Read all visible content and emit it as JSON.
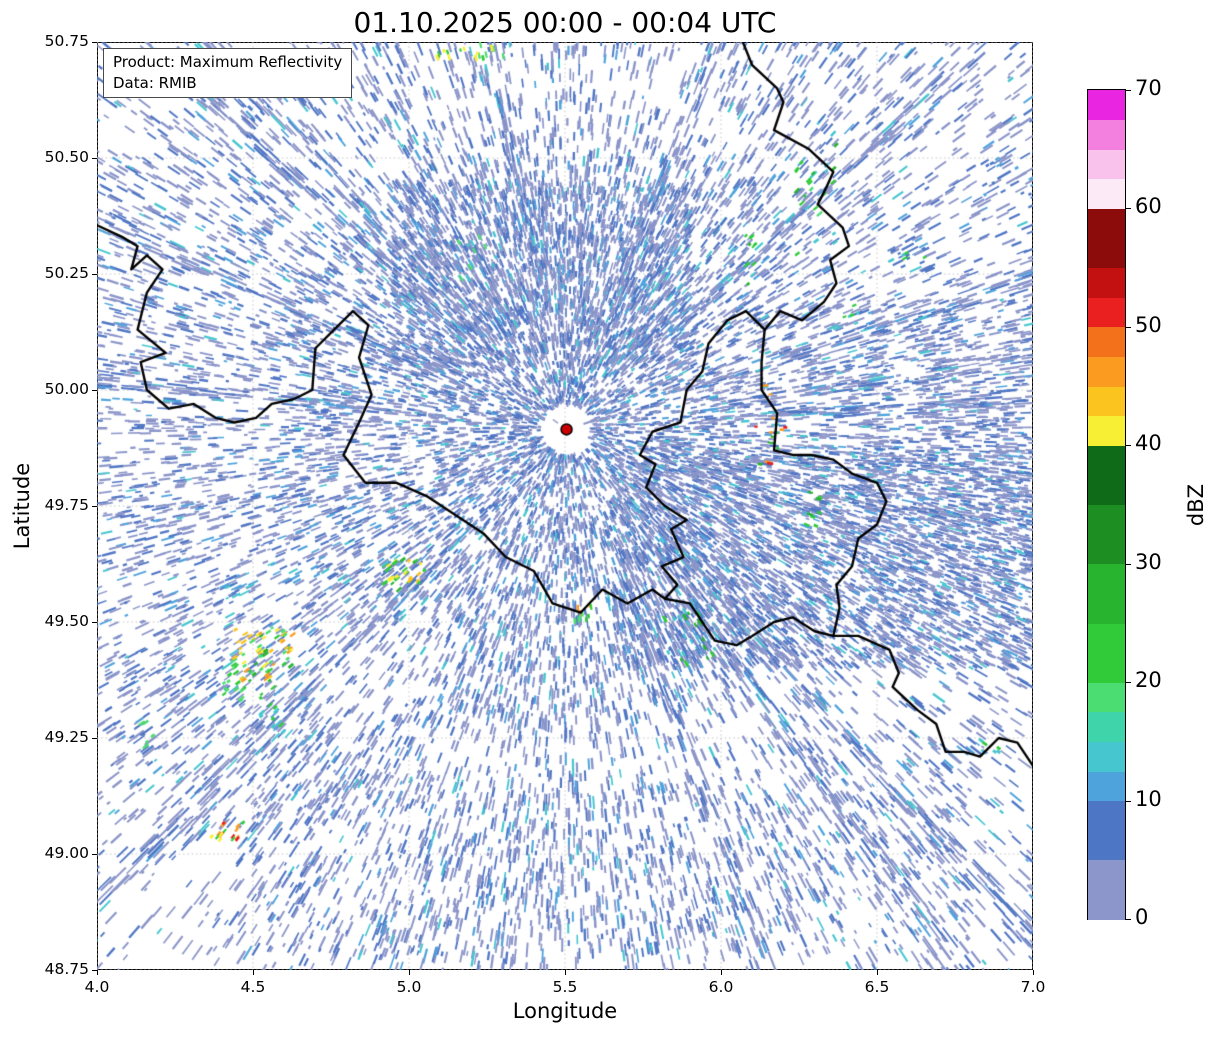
{
  "chart_data": {
    "type": "heatmap",
    "title": "01.10.2025 00:00 - 00:04 UTC",
    "xlabel": "Longitude",
    "ylabel": "Latitude",
    "xlim": [
      4.0,
      7.0
    ],
    "ylim": [
      48.75,
      50.75
    ],
    "xtick_labels": [
      "4.0",
      "4.5",
      "5.0",
      "5.5",
      "6.0",
      "6.5",
      "7.0"
    ],
    "ytick_labels": [
      "50.75",
      "50.50",
      "50.25",
      "50.00",
      "49.75",
      "49.50",
      "49.25",
      "49.00",
      "48.75"
    ],
    "grid": "dotted",
    "annotation": {
      "line1": "Product: Maximum Reflectivity",
      "line2": "Data: RMIB"
    },
    "colorbar": {
      "label": "dBZ",
      "min": 0,
      "max": 70,
      "ticks": [
        0,
        10,
        20,
        30,
        40,
        50,
        60,
        70
      ],
      "bands": [
        [
          0,
          5,
          "#8d96ca"
        ],
        [
          5,
          10,
          "#4d77c5"
        ],
        [
          10,
          12.5,
          "#4fa3dc"
        ],
        [
          12.5,
          15,
          "#46c6cf"
        ],
        [
          15,
          17.5,
          "#40d4ab"
        ],
        [
          17.5,
          20,
          "#4bdc72"
        ],
        [
          20,
          25,
          "#31cb3a"
        ],
        [
          25,
          30,
          "#28b42e"
        ],
        [
          30,
          35,
          "#1d8f22"
        ],
        [
          35,
          40,
          "#0f6b17"
        ],
        [
          40,
          42.5,
          "#f6ef33"
        ],
        [
          42.5,
          45,
          "#fcc41f"
        ],
        [
          45,
          47.5,
          "#fb9b20"
        ],
        [
          47.5,
          50,
          "#f4711c"
        ],
        [
          50,
          52.5,
          "#ea1f1f"
        ],
        [
          52.5,
          55,
          "#c31111"
        ],
        [
          55,
          60,
          "#8c0b0b"
        ],
        [
          60,
          62.5,
          "#fcebf7"
        ],
        [
          62.5,
          65,
          "#f9c2ec"
        ],
        [
          65,
          67.5,
          "#f380de"
        ],
        [
          67.5,
          70,
          "#ea25e2"
        ]
      ]
    },
    "radar_marker": {
      "lon": 5.505,
      "lat": 49.915,
      "color": "#cc0000"
    },
    "palette": {
      "slate": "#8b95c9",
      "steel": "#5076c4",
      "sky": "#4fa3dc",
      "cyan": "#46c6cf"
    },
    "borders": [
      [
        [
          4.0,
          50.355
        ],
        [
          4.08,
          50.33
        ],
        [
          4.13,
          50.31
        ],
        [
          4.11,
          50.26
        ],
        [
          4.16,
          50.29
        ],
        [
          4.21,
          50.26
        ],
        [
          4.16,
          50.21
        ],
        [
          4.13,
          50.13
        ],
        [
          4.22,
          50.08
        ],
        [
          4.14,
          50.06
        ],
        [
          4.16,
          50.0
        ],
        [
          4.23,
          49.96
        ],
        [
          4.31,
          49.97
        ],
        [
          4.38,
          49.94
        ],
        [
          4.44,
          49.93
        ],
        [
          4.51,
          49.94
        ],
        [
          4.56,
          49.97
        ],
        [
          4.63,
          49.98
        ],
        [
          4.69,
          50.0
        ],
        [
          4.7,
          50.09
        ],
        [
          4.76,
          50.13
        ],
        [
          4.82,
          50.17
        ],
        [
          4.87,
          50.14
        ],
        [
          4.84,
          50.07
        ],
        [
          4.88,
          49.99
        ],
        [
          4.84,
          49.93
        ],
        [
          4.79,
          49.86
        ],
        [
          4.86,
          49.8
        ],
        [
          4.96,
          49.8
        ],
        [
          5.06,
          49.77
        ],
        [
          5.15,
          49.73
        ],
        [
          5.24,
          49.69
        ],
        [
          5.31,
          49.64
        ],
        [
          5.4,
          49.61
        ],
        [
          5.46,
          49.54
        ],
        [
          5.55,
          49.52
        ],
        [
          5.62,
          49.57
        ],
        [
          5.7,
          49.54
        ],
        [
          5.78,
          49.57
        ],
        [
          5.82,
          49.55
        ]
      ],
      [
        [
          5.82,
          49.55
        ],
        [
          5.86,
          49.58
        ],
        [
          5.81,
          49.62
        ],
        [
          5.88,
          49.64
        ],
        [
          5.84,
          49.7
        ],
        [
          5.89,
          49.72
        ],
        [
          5.82,
          49.75
        ],
        [
          5.76,
          49.79
        ],
        [
          5.79,
          49.84
        ],
        [
          5.74,
          49.86
        ],
        [
          5.78,
          49.91
        ],
        [
          5.87,
          49.93
        ],
        [
          5.89,
          50.0
        ],
        [
          5.94,
          50.04
        ],
        [
          5.96,
          50.1
        ],
        [
          6.02,
          50.15
        ],
        [
          6.08,
          50.17
        ],
        [
          6.14,
          50.13
        ]
      ],
      [
        [
          6.07,
          50.75
        ],
        [
          6.1,
          50.7
        ],
        [
          6.18,
          50.65
        ],
        [
          6.2,
          50.62
        ],
        [
          6.17,
          50.56
        ],
        [
          6.28,
          50.52
        ],
        [
          6.36,
          50.47
        ],
        [
          6.34,
          50.44
        ],
        [
          6.31,
          50.4
        ],
        [
          6.39,
          50.35
        ],
        [
          6.41,
          50.31
        ],
        [
          6.35,
          50.28
        ],
        [
          6.37,
          50.23
        ],
        [
          6.33,
          50.19
        ],
        [
          6.26,
          50.15
        ],
        [
          6.19,
          50.17
        ],
        [
          6.14,
          50.13
        ]
      ],
      [
        [
          6.14,
          50.13
        ],
        [
          6.13,
          50.06
        ],
        [
          6.13,
          50.0
        ],
        [
          6.18,
          49.95
        ],
        [
          6.17,
          49.87
        ],
        [
          6.23,
          49.86
        ],
        [
          6.29,
          49.86
        ],
        [
          6.36,
          49.85
        ],
        [
          6.42,
          49.82
        ],
        [
          6.5,
          49.8
        ],
        [
          6.53,
          49.76
        ],
        [
          6.5,
          49.71
        ],
        [
          6.44,
          49.68
        ],
        [
          6.42,
          49.62
        ],
        [
          6.37,
          49.58
        ],
        [
          6.38,
          49.53
        ],
        [
          6.36,
          49.47
        ]
      ],
      [
        [
          5.82,
          49.55
        ],
        [
          5.9,
          49.54
        ],
        [
          5.98,
          49.46
        ],
        [
          6.05,
          49.45
        ],
        [
          6.1,
          49.47
        ],
        [
          6.17,
          49.5
        ],
        [
          6.23,
          49.51
        ],
        [
          6.3,
          49.48
        ],
        [
          6.36,
          49.47
        ]
      ],
      [
        [
          6.36,
          49.47
        ],
        [
          6.44,
          49.47
        ],
        [
          6.54,
          49.44
        ],
        [
          6.57,
          49.39
        ],
        [
          6.55,
          49.36
        ],
        [
          6.63,
          49.31
        ],
        [
          6.69,
          49.28
        ],
        [
          6.72,
          49.22
        ],
        [
          6.78,
          49.22
        ],
        [
          6.83,
          49.21
        ],
        [
          6.89,
          49.25
        ],
        [
          6.95,
          49.24
        ],
        [
          7.0,
          49.19
        ]
      ]
    ],
    "echo_clusters": [
      {
        "lon": 4.53,
        "lat": 49.43,
        "rx": 0.1,
        "ry": 0.06,
        "n": 70,
        "colors": [
          "#31cb3a",
          "#28b42e",
          "#f6ef33",
          "#fcc41f",
          "#fb9b20",
          "#4bdc72"
        ]
      },
      {
        "lon": 4.44,
        "lat": 49.37,
        "rx": 0.04,
        "ry": 0.04,
        "n": 14,
        "colors": [
          "#31cb3a",
          "#4bdc72"
        ]
      },
      {
        "lon": 4.56,
        "lat": 49.31,
        "rx": 0.04,
        "ry": 0.05,
        "n": 12,
        "colors": [
          "#31cb3a",
          "#46c6cf"
        ]
      },
      {
        "lon": 4.41,
        "lat": 49.05,
        "rx": 0.06,
        "ry": 0.02,
        "n": 16,
        "colors": [
          "#f6ef33",
          "#fb9b20",
          "#ea1f1f",
          "#31cb3a"
        ]
      },
      {
        "lon": 4.99,
        "lat": 49.6,
        "rx": 0.07,
        "ry": 0.035,
        "n": 30,
        "colors": [
          "#31cb3a",
          "#f6ef33",
          "#fcc41f",
          "#46c6cf",
          "#28b42e"
        ]
      },
      {
        "lon": 5.56,
        "lat": 49.52,
        "rx": 0.03,
        "ry": 0.02,
        "n": 10,
        "colors": [
          "#31cb3a",
          "#fb9b20",
          "#4bdc72"
        ]
      },
      {
        "lon": 5.9,
        "lat": 49.47,
        "rx": 0.08,
        "ry": 0.06,
        "n": 20,
        "colors": [
          "#31cb3a",
          "#28b42e",
          "#46c6cf"
        ]
      },
      {
        "lon": 6.32,
        "lat": 50.42,
        "rx": 0.08,
        "ry": 0.14,
        "n": 24,
        "colors": [
          "#31cb3a",
          "#28b42e",
          "#46c6cf",
          "#4bdc72"
        ]
      },
      {
        "lon": 6.16,
        "lat": 49.92,
        "rx": 0.05,
        "ry": 0.1,
        "n": 14,
        "colors": [
          "#31cb3a",
          "#ea1f1f",
          "#fb9b20",
          "#28b42e"
        ]
      },
      {
        "lon": 6.1,
        "lat": 50.28,
        "rx": 0.03,
        "ry": 0.06,
        "n": 8,
        "colors": [
          "#31cb3a",
          "#28b42e"
        ]
      },
      {
        "lon": 5.22,
        "lat": 50.28,
        "rx": 0.06,
        "ry": 0.05,
        "n": 12,
        "colors": [
          "#46c6cf",
          "#4bdc72"
        ]
      },
      {
        "lon": 5.2,
        "lat": 50.73,
        "rx": 0.12,
        "ry": 0.015,
        "n": 16,
        "colors": [
          "#31cb3a",
          "#f6ef33",
          "#4bdc72"
        ]
      },
      {
        "lon": 6.86,
        "lat": 49.23,
        "rx": 0.03,
        "ry": 0.02,
        "n": 6,
        "colors": [
          "#46c6cf",
          "#31cb3a"
        ]
      },
      {
        "lon": 4.16,
        "lat": 49.26,
        "rx": 0.02,
        "ry": 0.03,
        "n": 6,
        "colors": [
          "#31cb3a",
          "#4bdc72"
        ]
      },
      {
        "lon": 6.42,
        "lat": 50.16,
        "rx": 0.03,
        "ry": 0.03,
        "n": 6,
        "colors": [
          "#31cb3a",
          "#46c6cf"
        ]
      },
      {
        "lon": 6.28,
        "lat": 49.74,
        "rx": 0.04,
        "ry": 0.04,
        "n": 8,
        "colors": [
          "#31cb3a",
          "#28b42e"
        ]
      },
      {
        "lon": 6.94,
        "lat": 50.47,
        "rx": 0.1,
        "ry": 0.05,
        "n": 18,
        "colors": [
          "#4d77c5",
          "#4fa3dc"
        ]
      },
      {
        "lon": 6.6,
        "lat": 50.3,
        "rx": 0.06,
        "ry": 0.04,
        "n": 12,
        "colors": [
          "#4d77c5",
          "#46c6cf",
          "#31cb3a"
        ]
      },
      {
        "lon": 4.5,
        "lat": 50.6,
        "rx": 0.05,
        "ry": 0.03,
        "n": 8,
        "colors": [
          "#4d77c5"
        ]
      }
    ]
  }
}
